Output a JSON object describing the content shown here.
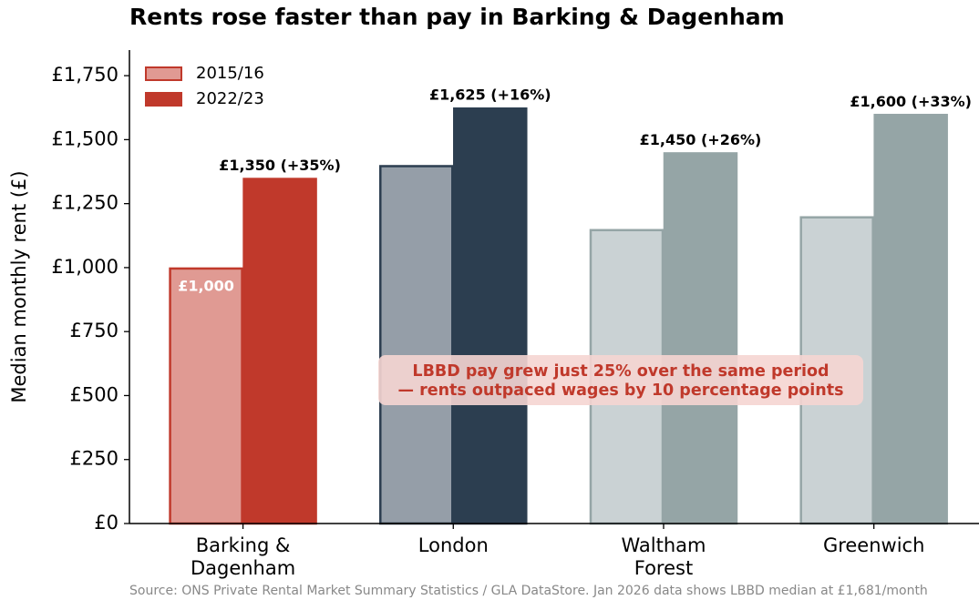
{
  "chart_data": {
    "type": "grouped_bar",
    "title": "Rents rose faster than pay in Barking & Dagenham",
    "ylabel": "Median monthly rent (£)",
    "categories": [
      "Barking &\nDagenham",
      "London",
      "Waltham\nForest",
      "Greenwich"
    ],
    "series": [
      {
        "name": "2015/16",
        "color": "#e09a93",
        "edgecolor": "#c0392b",
        "colors": [
          "#e09a93",
          "#959ea8",
          "#cad2d4",
          "#cad2d4"
        ],
        "edgecolors": [
          "#c0392b",
          "#2c3e50",
          "#95a5a6",
          "#95a5a6"
        ],
        "values": [
          1000,
          1400,
          1150,
          1200
        ],
        "value_labels": [
          "£1,000",
          null,
          null,
          null
        ]
      },
      {
        "name": "2022/23",
        "color": "#c0392b",
        "edgecolor": "#c0392b",
        "colors": [
          "#c0392b",
          "#2c3e50",
          "#95a5a6",
          "#95a5a6"
        ],
        "edgecolors": [
          "#c0392b",
          "#2c3e50",
          "#95a5a6",
          "#95a5a6"
        ],
        "values": [
          1350,
          1625,
          1450,
          1600
        ],
        "value_labels": [
          "£1,350 (+35%)",
          "£1,625 (+16%)",
          "£1,450 (+26%)",
          "£1,600 (+33%)"
        ]
      }
    ],
    "ylim": [
      0,
      1850
    ],
    "yticks": [
      {
        "value": 0,
        "label": "£0"
      },
      {
        "value": 250,
        "label": "£250"
      },
      {
        "value": 500,
        "label": "£500"
      },
      {
        "value": 750,
        "label": "£750"
      },
      {
        "value": 1000,
        "label": "£1,000"
      },
      {
        "value": 1250,
        "label": "£1,250"
      },
      {
        "value": 1500,
        "label": "£1,500"
      },
      {
        "value": 1750,
        "label": "£1,750"
      }
    ],
    "legend": "upper left",
    "annotation": [
      "LBBD pay grew just 25% over the same period",
      "— rents outpaced wages by 10 percentage points"
    ],
    "source": "Source: ONS Private Rental Market Summary Statistics / GLA DataStore. Jan 2026 data shows LBBD median at £1,681/month"
  }
}
